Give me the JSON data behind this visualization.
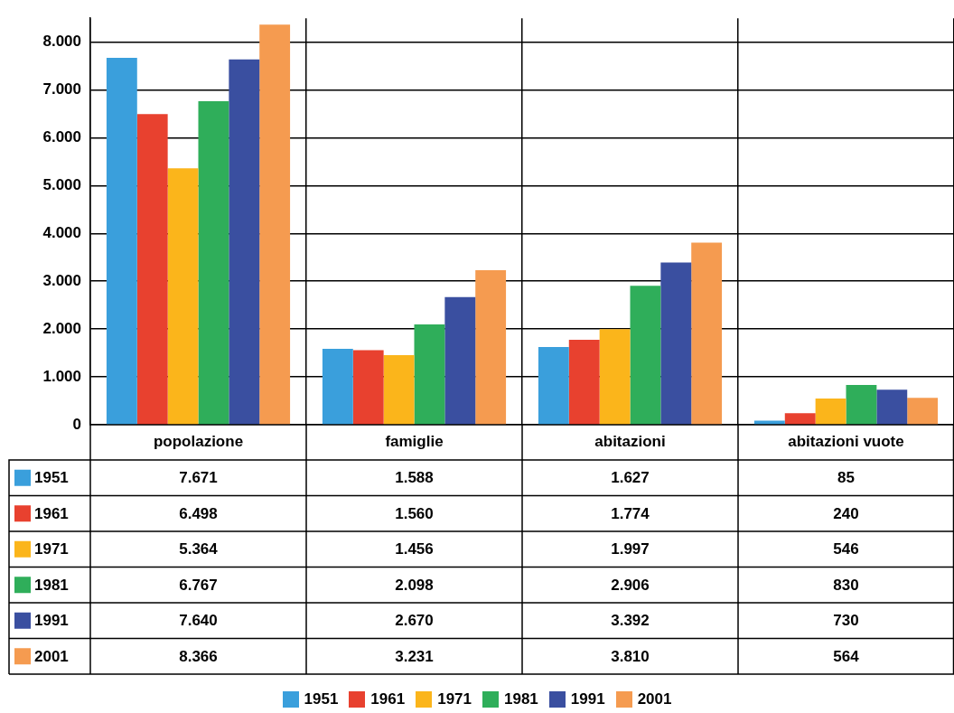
{
  "chart_data": {
    "type": "bar",
    "categories": [
      "popolazione",
      "famiglie",
      "abitazioni",
      "abitazioni vuote"
    ],
    "series": [
      {
        "name": "1951",
        "color": "#3a9fdc",
        "values": [
          7671,
          1588,
          1627,
          85
        ],
        "value_labels": [
          "7.671",
          "1.588",
          "1.627",
          "85"
        ]
      },
      {
        "name": "1961",
        "color": "#e8412f",
        "values": [
          6498,
          1560,
          1774,
          240
        ],
        "value_labels": [
          "6.498",
          "1.560",
          "1.774",
          "240"
        ]
      },
      {
        "name": "1971",
        "color": "#fbb51b",
        "values": [
          5364,
          1456,
          1997,
          546
        ],
        "value_labels": [
          "5.364",
          "1.456",
          "1.997",
          "546"
        ]
      },
      {
        "name": "1981",
        "color": "#2fae5a",
        "values": [
          6767,
          2098,
          2906,
          830
        ],
        "value_labels": [
          "6.767",
          "2.098",
          "2.906",
          "830"
        ]
      },
      {
        "name": "1991",
        "color": "#3a4fa0",
        "values": [
          7640,
          2670,
          3392,
          730
        ],
        "value_labels": [
          "7.640",
          "2.670",
          "3.392",
          "730"
        ]
      },
      {
        "name": "2001",
        "color": "#f59b50",
        "values": [
          8366,
          3231,
          3810,
          564
        ],
        "value_labels": [
          "8.366",
          "3.231",
          "3.810",
          "564"
        ]
      }
    ],
    "ylim": [
      0,
      8500
    ],
    "yticks": [
      {
        "value": 0,
        "label": "0"
      },
      {
        "value": 1000,
        "label": "1.000"
      },
      {
        "value": 2000,
        "label": "2.000"
      },
      {
        "value": 3000,
        "label": "3.000"
      },
      {
        "value": 4000,
        "label": "4.000"
      },
      {
        "value": 5000,
        "label": "5.000"
      },
      {
        "value": 6000,
        "label": "6.000"
      },
      {
        "value": 7000,
        "label": "7.000"
      },
      {
        "value": 8000,
        "label": "8.000"
      }
    ],
    "grid": true,
    "legend": "bottom"
  }
}
